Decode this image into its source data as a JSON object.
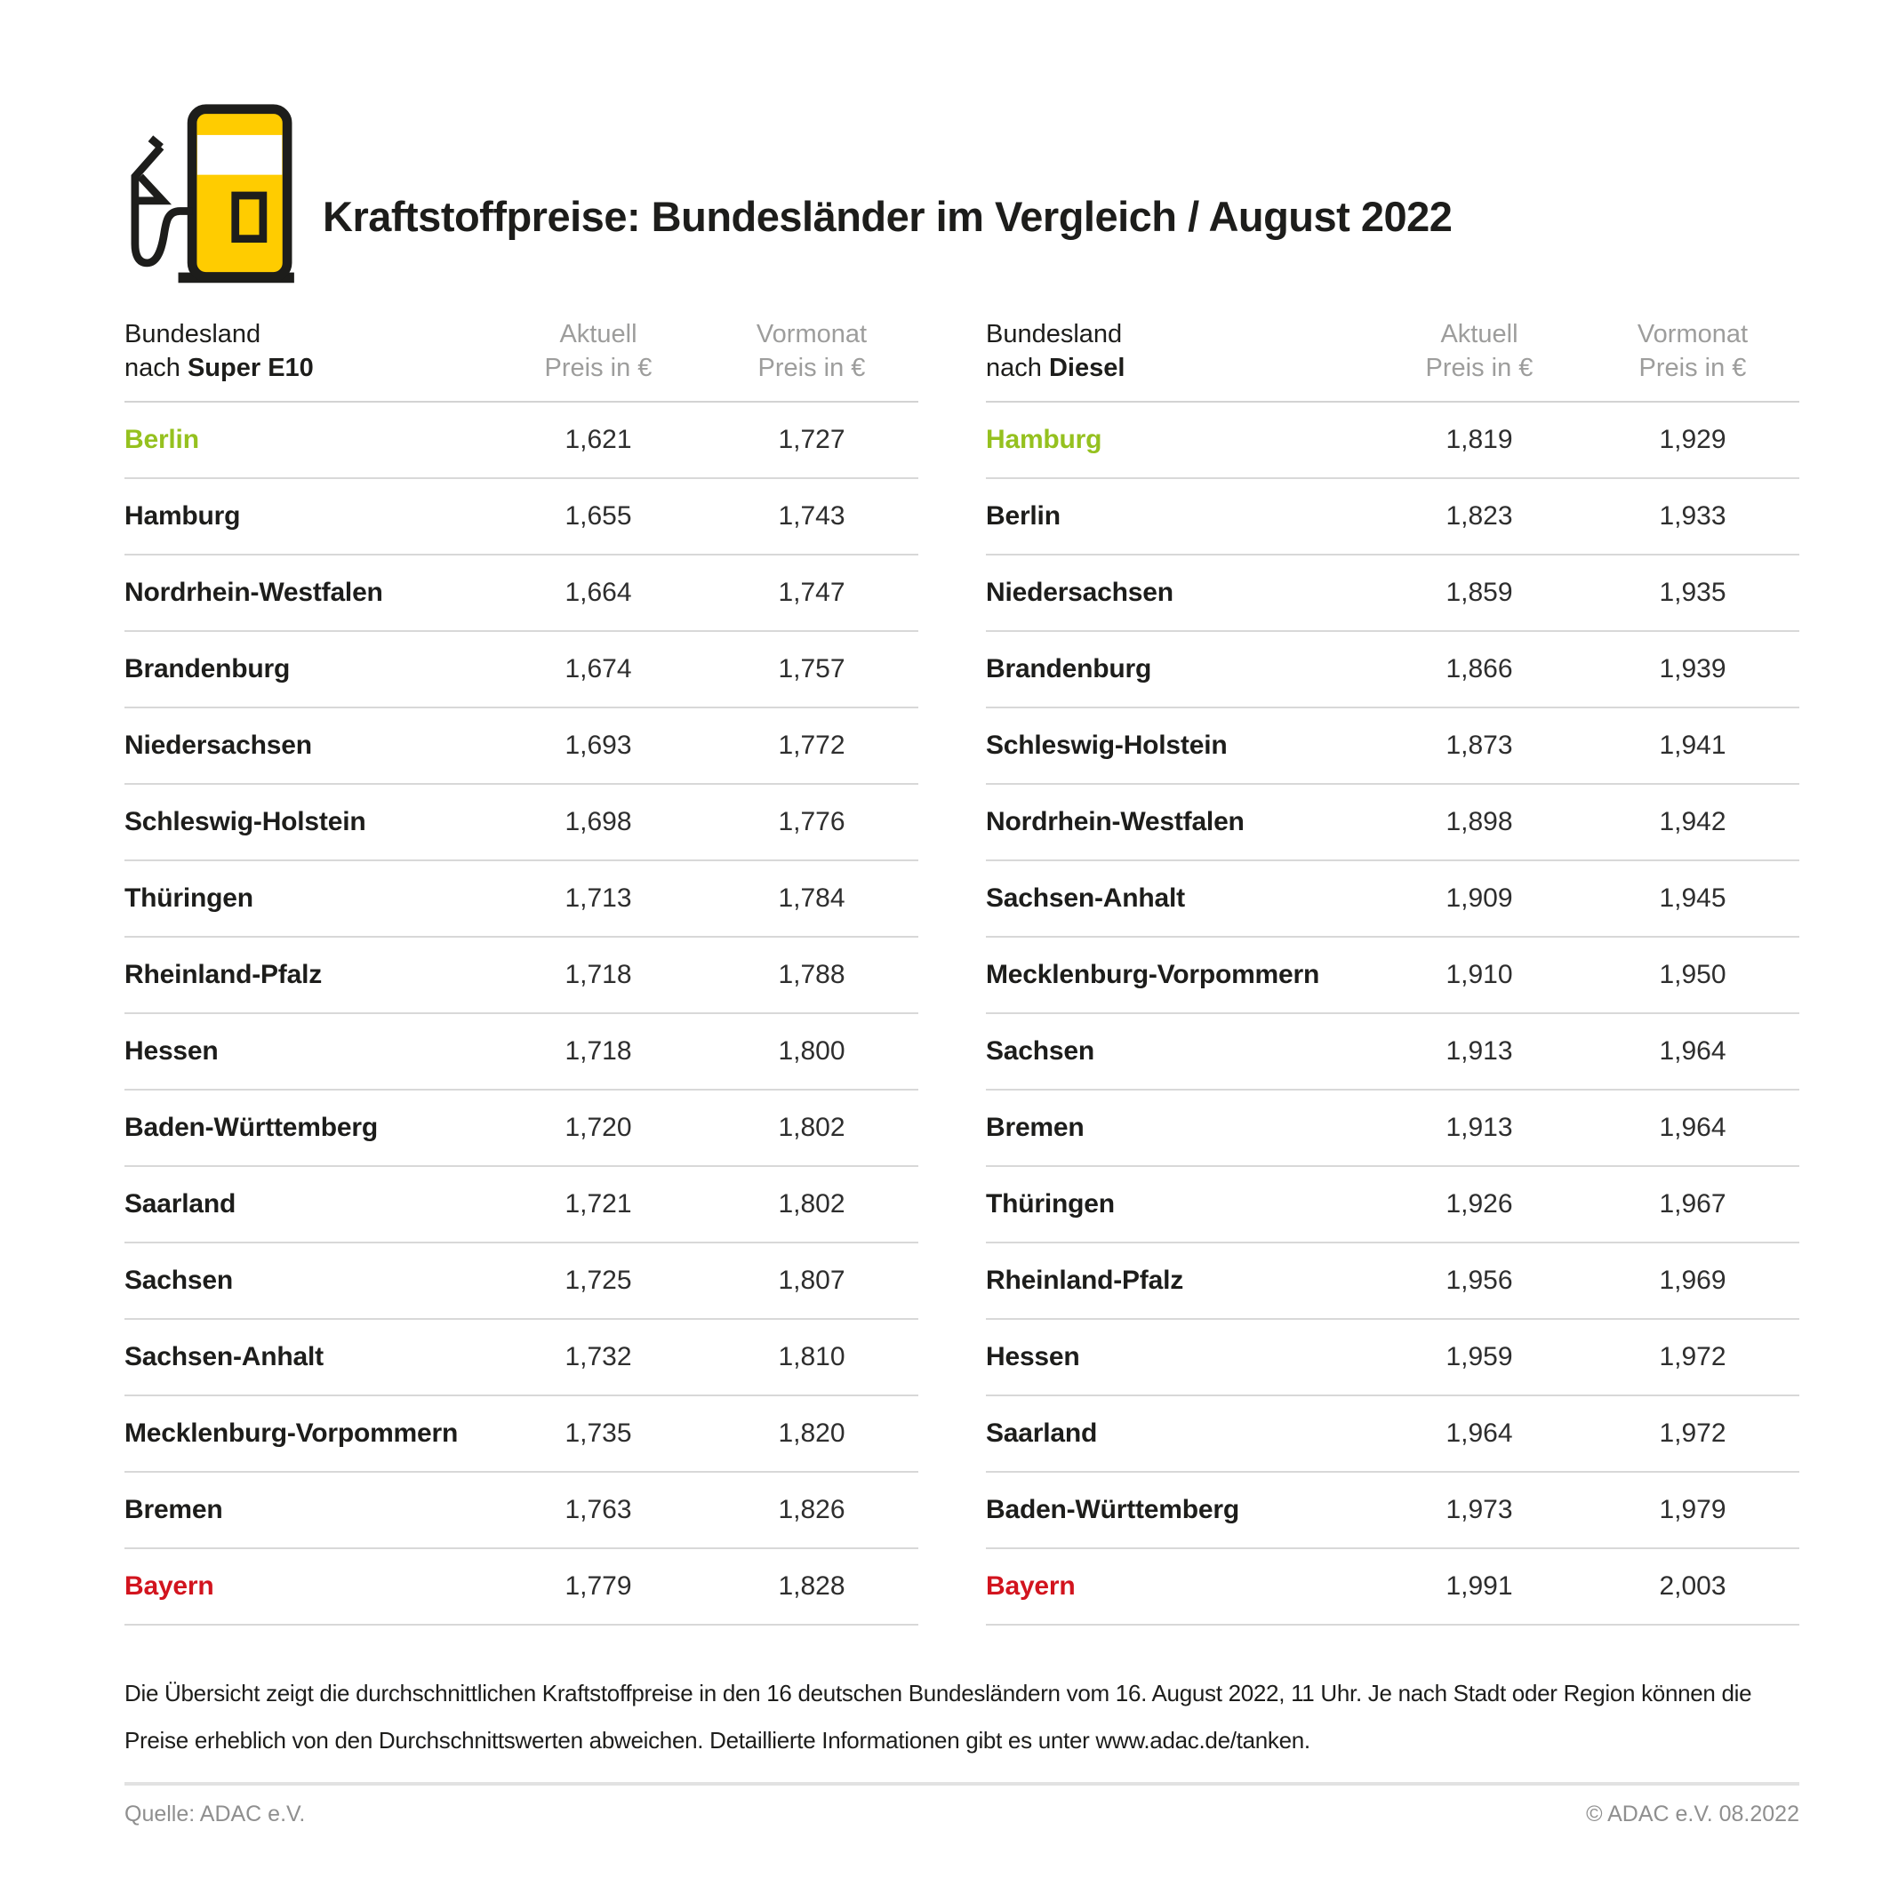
{
  "title": "Kraftstoffpreise: Bundesländer im Vergleich / August 2022",
  "icon": "fuel-pump-icon",
  "colors": {
    "pump_yellow": "#FFCC00",
    "outline_black": "#1d1d1b",
    "highlight_green": "#95C11F",
    "highlight_red": "#D2141E",
    "header_gray": "#9D9D9C",
    "divider_gray": "#D8D8D8"
  },
  "chart_data": {
    "type": "table",
    "tables": [
      {
        "name": "Super E10",
        "columns": {
          "land_line1": "Bundesland",
          "land_prefix": "nach ",
          "land_fuel": "Super E10",
          "current_line1": "Aktuell",
          "current_line2": "Preis in €",
          "previous_line1": "Vormonat",
          "previous_line2": "Preis in €"
        },
        "rows": [
          {
            "land": "Berlin",
            "aktuell": "1,621",
            "vormonat": "1,727",
            "highlight": "green"
          },
          {
            "land": "Hamburg",
            "aktuell": "1,655",
            "vormonat": "1,743"
          },
          {
            "land": "Nordrhein-Westfalen",
            "aktuell": "1,664",
            "vormonat": "1,747"
          },
          {
            "land": "Brandenburg",
            "aktuell": "1,674",
            "vormonat": "1,757"
          },
          {
            "land": "Niedersachsen",
            "aktuell": "1,693",
            "vormonat": "1,772"
          },
          {
            "land": "Schleswig-Holstein",
            "aktuell": "1,698",
            "vormonat": "1,776"
          },
          {
            "land": "Thüringen",
            "aktuell": "1,713",
            "vormonat": "1,784"
          },
          {
            "land": "Rheinland-Pfalz",
            "aktuell": "1,718",
            "vormonat": "1,788"
          },
          {
            "land": "Hessen",
            "aktuell": "1,718",
            "vormonat": "1,800"
          },
          {
            "land": "Baden-Württemberg",
            "aktuell": "1,720",
            "vormonat": "1,802"
          },
          {
            "land": "Saarland",
            "aktuell": "1,721",
            "vormonat": "1,802"
          },
          {
            "land": "Sachsen",
            "aktuell": "1,725",
            "vormonat": "1,807"
          },
          {
            "land": "Sachsen-Anhalt",
            "aktuell": "1,732",
            "vormonat": "1,810"
          },
          {
            "land": "Mecklenburg-Vorpommern",
            "aktuell": "1,735",
            "vormonat": "1,820"
          },
          {
            "land": "Bremen",
            "aktuell": "1,763",
            "vormonat": "1,826"
          },
          {
            "land": "Bayern",
            "aktuell": "1,779",
            "vormonat": "1,828",
            "highlight": "red"
          }
        ]
      },
      {
        "name": "Diesel",
        "columns": {
          "land_line1": "Bundesland",
          "land_prefix": "nach ",
          "land_fuel": "Diesel",
          "current_line1": "Aktuell",
          "current_line2": "Preis in €",
          "previous_line1": "Vormonat",
          "previous_line2": "Preis in €"
        },
        "rows": [
          {
            "land": "Hamburg",
            "aktuell": "1,819",
            "vormonat": "1,929",
            "highlight": "green"
          },
          {
            "land": "Berlin",
            "aktuell": "1,823",
            "vormonat": "1,933"
          },
          {
            "land": "Niedersachsen",
            "aktuell": "1,859",
            "vormonat": "1,935"
          },
          {
            "land": "Brandenburg",
            "aktuell": "1,866",
            "vormonat": "1,939"
          },
          {
            "land": "Schleswig-Holstein",
            "aktuell": "1,873",
            "vormonat": "1,941"
          },
          {
            "land": "Nordrhein-Westfalen",
            "aktuell": "1,898",
            "vormonat": "1,942"
          },
          {
            "land": "Sachsen-Anhalt",
            "aktuell": "1,909",
            "vormonat": "1,945"
          },
          {
            "land": "Mecklenburg-Vorpommern",
            "aktuell": "1,910",
            "vormonat": "1,950"
          },
          {
            "land": "Sachsen",
            "aktuell": "1,913",
            "vormonat": "1,964"
          },
          {
            "land": "Bremen",
            "aktuell": "1,913",
            "vormonat": "1,964"
          },
          {
            "land": "Thüringen",
            "aktuell": "1,926",
            "vormonat": "1,967"
          },
          {
            "land": "Rheinland-Pfalz",
            "aktuell": "1,956",
            "vormonat": "1,969"
          },
          {
            "land": "Hessen",
            "aktuell": "1,959",
            "vormonat": "1,972"
          },
          {
            "land": "Saarland",
            "aktuell": "1,964",
            "vormonat": "1,972"
          },
          {
            "land": "Baden-Württemberg",
            "aktuell": "1,973",
            "vormonat": "1,979"
          },
          {
            "land": "Bayern",
            "aktuell": "1,991",
            "vormonat": "2,003",
            "highlight": "red"
          }
        ]
      }
    ]
  },
  "footnote_lines": [
    "Die Übersicht zeigt die durchschnittlichen Kraftstoffpreise in den 16 deutschen Bundesländern vom 16. August 2022, 11 Uhr. Je nach Stadt oder Region können die",
    "Preise erheblich von den Durchschnittswerten abweichen. Detaillierte Informationen gibt es unter www.adac.de/tanken."
  ],
  "footer": {
    "source": "Quelle: ADAC e.V.",
    "copyright": "© ADAC e.V. 08.2022"
  }
}
